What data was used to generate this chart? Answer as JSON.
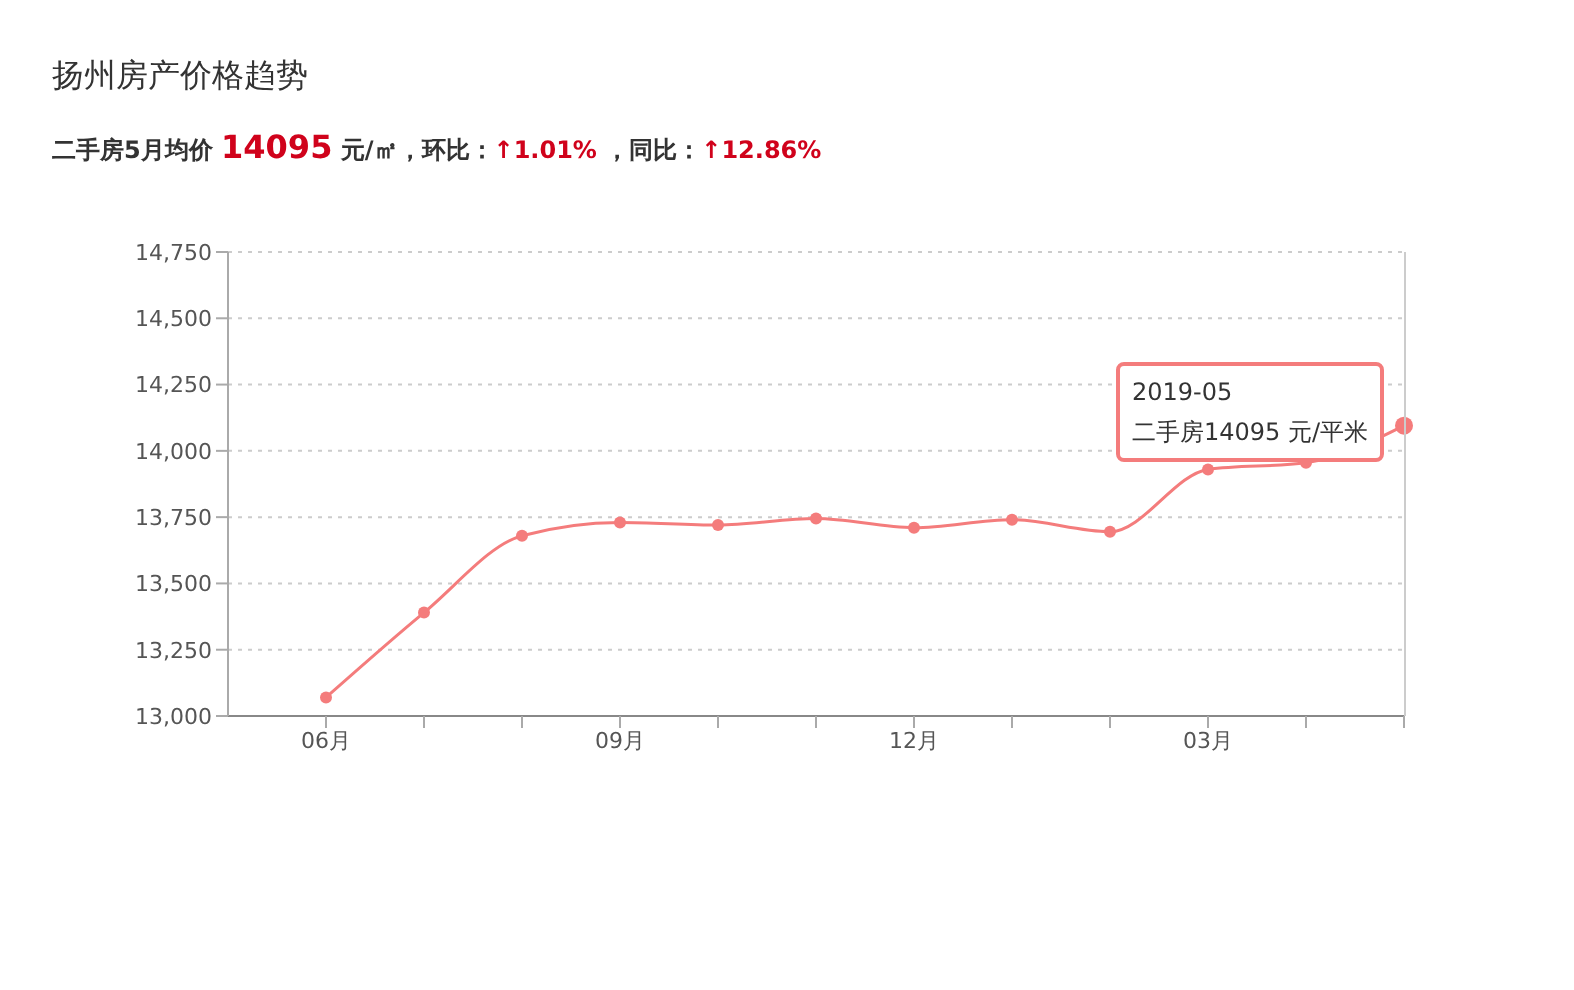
{
  "chart_data": {
    "type": "line",
    "title": "扬州房产价格趋势",
    "subtitle": "二手房5月均价 14095 元/㎡，环比：↑1.01% ，同比：↑12.86%",
    "categories": [
      "06月",
      null,
      null,
      "09月",
      null,
      null,
      "12月",
      null,
      null,
      "03月",
      null,
      null
    ],
    "series": [
      {
        "color": "#f47c7c",
        "values": [
          13070,
          13390,
          13680,
          13730,
          13720,
          13745,
          13710,
          13740,
          13695,
          13930,
          13955,
          14095
        ]
      }
    ],
    "ylim": [
      13000,
      14750
    ],
    "yticks": [
      {
        "value": 13000,
        "label": "13,000"
      },
      {
        "value": 13250,
        "label": "13,250"
      },
      {
        "value": 13500,
        "label": "13,500"
      },
      {
        "value": 13750,
        "label": "13,750"
      },
      {
        "value": 14000,
        "label": "14,000"
      },
      {
        "value": 14250,
        "label": "14,250"
      },
      {
        "value": 14500,
        "label": "14,500"
      },
      {
        "value": 14750,
        "label": "14,750"
      }
    ],
    "grid": "y",
    "marker": "circle",
    "legend": false,
    "annotations": [
      "2019-05\n二手房14095 元/平米"
    ]
  }
}
